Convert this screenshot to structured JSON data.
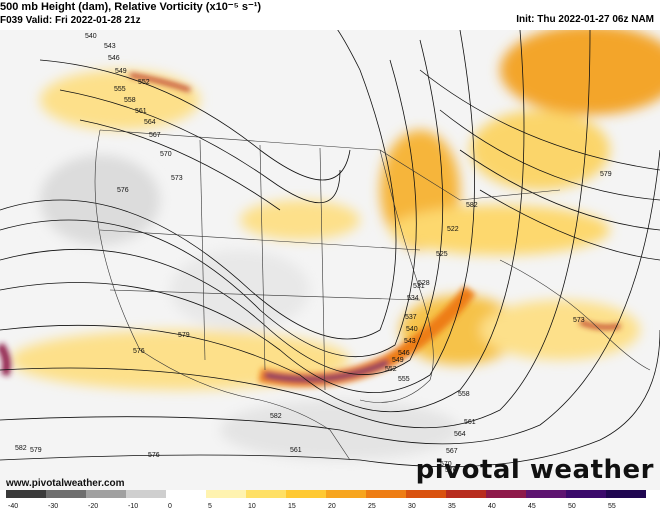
{
  "header": {
    "title": "500 mb Height (dam), Relative Vorticity (x10⁻⁵ s⁻¹)",
    "valid": "F039 Valid: Fri 2022-01-28 21z",
    "init": "Init: Thu 2022-01-27 06z NAM"
  },
  "credit": "www.pivotalweather.com",
  "logo": "pivotal weather",
  "contour_labels": [
    "540",
    "543",
    "546",
    "549",
    "552",
    "555",
    "558",
    "561",
    "564",
    "567",
    "570",
    "573",
    "576",
    "579",
    "582",
    "522",
    "525",
    "528",
    "531",
    "534",
    "537",
    "540",
    "543",
    "546",
    "549",
    "552",
    "555",
    "558",
    "561",
    "564",
    "567",
    "570",
    "573",
    "576",
    "579",
    "582",
    "561",
    "576",
    "576",
    "579",
    "582"
  ],
  "colorbar": {
    "ticks": [
      "-40",
      "-30",
      "-20",
      "-10",
      "0",
      "5",
      "10",
      "15",
      "20",
      "25",
      "30",
      "35",
      "40",
      "45",
      "50",
      "55"
    ],
    "colors": [
      "#3a3a3a",
      "#6e6e6e",
      "#a0a0a0",
      "#cfcfcf",
      "#ffffff",
      "#fff3b0",
      "#ffe066",
      "#ffc933",
      "#f7a51f",
      "#ee7d14",
      "#d9520f",
      "#b82d1f",
      "#8e1a4a",
      "#5e1470",
      "#3b0a6b",
      "#1f0650"
    ]
  }
}
